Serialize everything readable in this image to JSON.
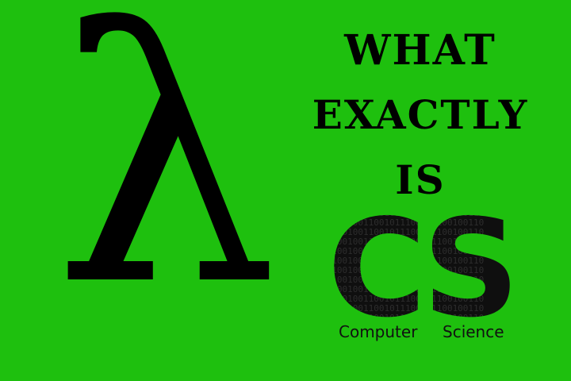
{
  "lambda_glyph": "λ",
  "headline": {
    "line1": "WHAT",
    "line2": "EXACTLY",
    "line3": "IS"
  },
  "logo": {
    "text": "CS",
    "binary": "0110010011001011100101100100110",
    "caption_left": "Computer",
    "caption_right": "Science"
  },
  "colors": {
    "background": "#1ec00e",
    "ink": "#000000"
  }
}
